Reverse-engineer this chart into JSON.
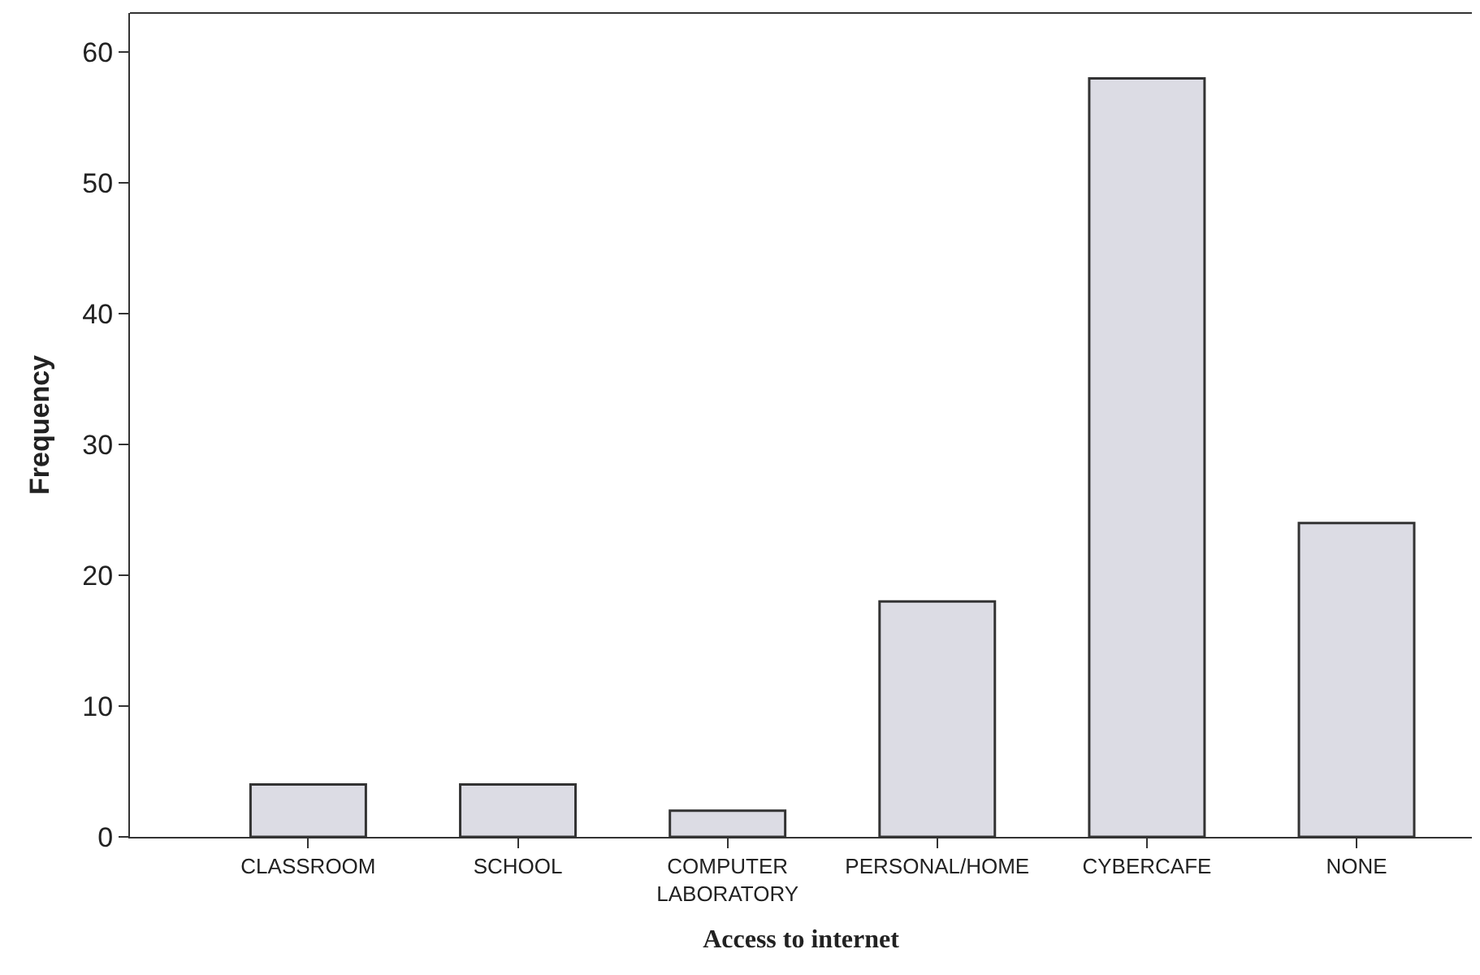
{
  "chart_data": {
    "type": "bar",
    "xlabel": "Access to internet",
    "ylabel": "Frequency",
    "categories": [
      "CLASSROOM",
      "SCHOOL",
      "COMPUTER LABORATORY",
      "PERSONAL/HOME",
      "CYBERCAFE",
      "NONE"
    ],
    "values": [
      4,
      4,
      2,
      18,
      58,
      24
    ],
    "color": "#dcdce4",
    "ylim": [
      0,
      63
    ],
    "yticks": [
      0,
      10,
      20,
      30,
      40,
      50,
      60
    ]
  }
}
